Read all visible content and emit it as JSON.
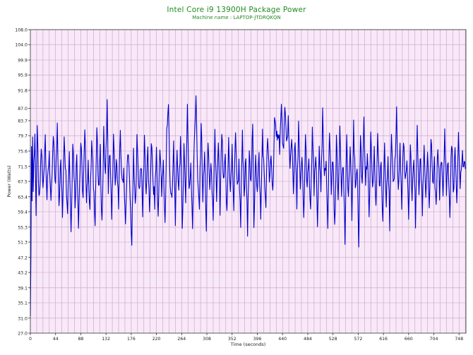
{
  "chart_data": {
    "type": "line",
    "title": "Intel Core i9 13900H Package Power",
    "subtitle": "Machine name : LAPTOP-JTDRQKQN",
    "xlabel": "Time (seconds)",
    "ylabel": "Power (Watts)",
    "xlim": [
      0,
      760
    ],
    "ylim": [
      27.0,
      108.0
    ],
    "x_ticks": [
      0,
      44,
      88,
      132,
      176,
      220,
      264,
      308,
      352,
      396,
      440,
      484,
      528,
      572,
      616,
      660,
      704,
      748
    ],
    "y_ticks": [
      "27.0",
      "31.0",
      "35.1",
      "39.1",
      "43.2",
      "47.2",
      "51.3",
      "55.3",
      "59.4",
      "63.4",
      "67.5",
      "71.5",
      "75.6",
      "79.7",
      "83.7",
      "87.0",
      "91.8",
      "95.9",
      "99.9",
      "104.0",
      "108.0"
    ],
    "grid": true,
    "background_color": "#f8e8f8",
    "grid_color": "#c8a0c8",
    "line_color": "#0000cc",
    "title_color": "#228b22",
    "series": [
      {
        "sampling": "one sample per second (approximate trace read from image)",
        "anchors": [
          [
            0,
            34.0
          ],
          [
            1,
            46.0
          ],
          [
            2,
            79.0
          ],
          [
            3,
            62.0
          ],
          [
            4,
            80.0
          ],
          [
            5,
            65.0
          ],
          [
            6,
            72.0
          ],
          [
            8,
            81.0
          ],
          [
            10,
            56.0
          ],
          [
            12,
            84.0
          ],
          [
            14,
            66.0
          ],
          [
            16,
            62.0
          ],
          [
            19,
            77.0
          ],
          [
            22,
            65.0
          ],
          [
            26,
            80.0
          ],
          [
            29,
            63.0
          ],
          [
            33,
            76.0
          ],
          [
            36,
            60.0
          ],
          [
            40,
            79.0
          ],
          [
            44,
            66.0
          ],
          [
            47,
            83.0
          ],
          [
            50,
            62.0
          ],
          [
            53,
            73.0
          ],
          [
            56,
            58.0
          ],
          [
            59,
            81.0
          ],
          [
            62,
            69.0
          ],
          [
            65,
            61.0
          ],
          [
            68,
            76.0
          ],
          [
            71,
            54.0
          ],
          [
            74,
            79.0
          ],
          [
            78,
            62.0
          ],
          [
            81,
            75.0
          ],
          [
            84,
            57.0
          ],
          [
            88,
            78.0
          ],
          [
            92,
            63.0
          ],
          [
            95,
            80.0
          ],
          [
            98,
            64.0
          ],
          [
            101,
            71.0
          ],
          [
            104,
            60.0
          ],
          [
            107,
            78.0
          ],
          [
            110,
            67.0
          ],
          [
            113,
            58.0
          ],
          [
            116,
            82.0
          ],
          [
            119,
            64.0
          ],
          [
            122,
            75.0
          ],
          [
            125,
            56.0
          ],
          [
            128,
            80.0
          ],
          [
            131,
            68.0
          ],
          [
            134,
            89.0
          ],
          [
            136,
            66.0
          ],
          [
            139,
            76.0
          ],
          [
            142,
            56.0
          ],
          [
            145,
            79.0
          ],
          [
            148,
            66.0
          ],
          [
            151,
            74.0
          ],
          [
            154,
            60.0
          ],
          [
            157,
            81.0
          ],
          [
            160,
            66.0
          ],
          [
            163,
            71.0
          ],
          [
            166,
            55.0
          ],
          [
            170,
            77.0
          ],
          [
            174,
            63.0
          ],
          [
            177,
            51.0
          ],
          [
            180,
            74.0
          ],
          [
            183,
            60.0
          ],
          [
            186,
            78.0
          ],
          [
            190,
            65.0
          ],
          [
            193,
            73.0
          ],
          [
            196,
            59.0
          ],
          [
            199,
            80.0
          ],
          [
            202,
            64.0
          ],
          [
            205,
            76.0
          ],
          [
            208,
            57.0
          ],
          [
            211,
            79.0
          ],
          [
            214,
            67.0
          ],
          [
            217,
            62.0
          ],
          [
            220,
            76.0
          ],
          [
            223,
            57.0
          ],
          [
            226,
            78.0
          ],
          [
            229,
            64.0
          ],
          [
            232,
            72.0
          ],
          [
            235,
            56.0
          ],
          [
            238,
            81.0
          ],
          [
            241,
            87.0
          ],
          [
            244,
            67.0
          ],
          [
            247,
            61.0
          ],
          [
            250,
            77.0
          ],
          [
            253,
            58.0
          ],
          [
            256,
            74.0
          ],
          [
            259,
            66.0
          ],
          [
            262,
            79.0
          ],
          [
            265,
            55.0
          ],
          [
            268,
            77.0
          ],
          [
            271,
            63.0
          ],
          [
            274,
            88.0
          ],
          [
            277,
            64.0
          ],
          [
            280,
            73.0
          ],
          [
            283,
            56.0
          ],
          [
            286,
            78.0
          ],
          [
            289,
            91.0
          ],
          [
            292,
            66.0
          ],
          [
            295,
            61.0
          ],
          [
            298,
            84.0
          ],
          [
            301,
            63.0
          ],
          [
            304,
            75.0
          ],
          [
            307,
            55.0
          ],
          [
            310,
            78.0
          ],
          [
            313,
            66.0
          ],
          [
            316,
            72.0
          ],
          [
            319,
            55.0
          ],
          [
            322,
            80.0
          ],
          [
            325,
            63.0
          ],
          [
            328,
            77.0
          ],
          [
            331,
            59.0
          ],
          [
            334,
            81.0
          ],
          [
            337,
            66.0
          ],
          [
            340,
            73.0
          ],
          [
            343,
            58.0
          ],
          [
            346,
            79.0
          ],
          [
            349,
            64.0
          ],
          [
            352,
            76.0
          ],
          [
            355,
            60.0
          ],
          [
            358,
            82.0
          ],
          [
            361,
            65.0
          ],
          [
            364,
            72.0
          ],
          [
            367,
            57.0
          ],
          [
            370,
            79.0
          ],
          [
            373,
            63.0
          ],
          [
            376,
            74.0
          ],
          [
            379,
            53.0
          ],
          [
            382,
            78.0
          ],
          [
            385,
            66.0
          ],
          [
            388,
            82.0
          ],
          [
            390,
            55.0
          ],
          [
            393,
            76.0
          ],
          [
            396,
            64.0
          ],
          [
            399,
            74.0
          ],
          [
            402,
            57.0
          ],
          [
            405,
            81.0
          ],
          [
            408,
            68.0
          ],
          [
            411,
            62.0
          ],
          [
            414,
            80.0
          ],
          [
            417,
            66.0
          ],
          [
            420,
            75.0
          ],
          [
            423,
            64.0
          ],
          [
            426,
            84.0
          ],
          [
            429,
            78.0
          ],
          [
            432,
            82.0
          ],
          [
            435,
            77.0
          ],
          [
            438,
            87.0
          ],
          [
            441,
            75.0
          ],
          [
            444,
            86.0
          ],
          [
            447,
            77.0
          ],
          [
            450,
            84.0
          ],
          [
            453,
            70.0
          ],
          [
            456,
            80.0
          ],
          [
            459,
            66.0
          ],
          [
            462,
            78.0
          ],
          [
            465,
            61.0
          ],
          [
            468,
            84.0
          ],
          [
            471,
            64.0
          ],
          [
            474,
            74.0
          ],
          [
            477,
            57.0
          ],
          [
            480,
            79.0
          ],
          [
            483,
            66.0
          ],
          [
            486,
            72.0
          ],
          [
            489,
            58.0
          ],
          [
            492,
            82.0
          ],
          [
            495,
            64.0
          ],
          [
            498,
            75.0
          ],
          [
            501,
            55.0
          ],
          [
            504,
            78.0
          ],
          [
            507,
            63.0
          ],
          [
            510,
            85.0
          ],
          [
            513,
            67.0
          ],
          [
            516,
            73.0
          ],
          [
            519,
            57.0
          ],
          [
            522,
            81.0
          ],
          [
            525,
            65.0
          ],
          [
            528,
            75.0
          ],
          [
            531,
            54.0
          ],
          [
            534,
            79.0
          ],
          [
            537,
            62.0
          ],
          [
            540,
            83.0
          ],
          [
            543,
            66.0
          ],
          [
            546,
            72.0
          ],
          [
            549,
            52.0
          ],
          [
            552,
            78.0
          ],
          [
            555,
            63.0
          ],
          [
            558,
            76.0
          ],
          [
            561,
            58.0
          ],
          [
            564,
            82.0
          ],
          [
            567,
            66.0
          ],
          [
            570,
            73.0
          ],
          [
            573,
            51.0
          ],
          [
            576,
            80.0
          ],
          [
            579,
            66.0
          ],
          [
            582,
            85.0
          ],
          [
            585,
            67.0
          ],
          [
            588,
            74.0
          ],
          [
            591,
            58.0
          ],
          [
            594,
            79.0
          ],
          [
            597,
            64.0
          ],
          [
            600,
            76.0
          ],
          [
            603,
            59.0
          ],
          [
            606,
            81.0
          ],
          [
            609,
            66.0
          ],
          [
            612,
            71.0
          ],
          [
            615,
            57.0
          ],
          [
            618,
            78.0
          ],
          [
            621,
            63.0
          ],
          [
            624,
            75.0
          ],
          [
            627,
            56.0
          ],
          [
            630,
            79.0
          ],
          [
            633,
            65.0
          ],
          [
            636,
            72.0
          ],
          [
            639,
            86.0
          ],
          [
            642,
            64.0
          ],
          [
            645,
            77.0
          ],
          [
            648,
            60.0
          ],
          [
            651,
            80.0
          ],
          [
            654,
            66.0
          ],
          [
            657,
            73.0
          ],
          [
            660,
            56.0
          ],
          [
            663,
            79.0
          ],
          [
            666,
            62.0
          ],
          [
            669,
            75.0
          ],
          [
            672,
            57.0
          ],
          [
            675,
            81.0
          ],
          [
            678,
            65.0
          ],
          [
            681,
            74.0
          ],
          [
            684,
            60.0
          ],
          [
            687,
            78.0
          ],
          [
            690,
            63.0
          ],
          [
            693,
            76.0
          ],
          [
            696,
            58.0
          ],
          [
            699,
            80.0
          ],
          [
            702,
            66.0
          ],
          [
            705,
            72.0
          ],
          [
            708,
            59.0
          ],
          [
            711,
            78.0
          ],
          [
            714,
            64.0
          ],
          [
            717,
            75.0
          ],
          [
            720,
            62.0
          ],
          [
            723,
            80.0
          ],
          [
            726,
            66.0
          ],
          [
            729,
            73.0
          ],
          [
            732,
            58.0
          ],
          [
            735,
            79.0
          ],
          [
            738,
            64.0
          ],
          [
            741,
            76.0
          ],
          [
            744,
            60.0
          ],
          [
            747,
            81.0
          ],
          [
            750,
            66.0
          ],
          [
            753,
            74.0
          ],
          [
            756,
            73.0
          ],
          [
            758,
            72.0
          ]
        ]
      }
    ]
  }
}
